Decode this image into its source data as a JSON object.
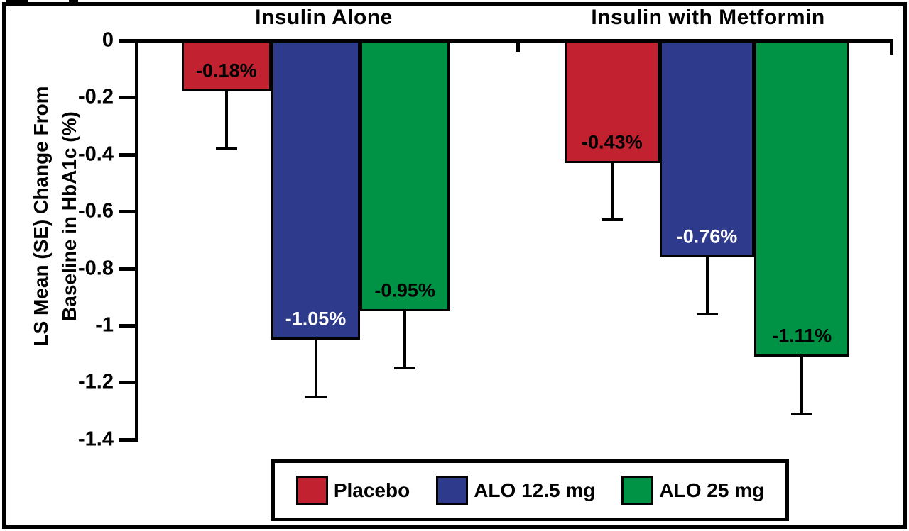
{
  "chart_data": {
    "type": "bar",
    "orientation": "vertical-negative",
    "groups": [
      "Insulin Alone",
      "Insulin with Metformin"
    ],
    "series": [
      {
        "name": "Placebo",
        "color": "#C2212F",
        "label_text_color": "#000000",
        "values": [
          -0.18,
          -0.43
        ],
        "value_labels": [
          "-0.18%",
          "-0.43%"
        ],
        "se_lower_whisker": [
          0.2,
          0.2
        ]
      },
      {
        "name": "ALO 12.5 mg",
        "color": "#2E3A8C",
        "label_text_color": "#FFFFFF",
        "values": [
          -1.05,
          -0.76
        ],
        "value_labels": [
          "-1.05%",
          "-0.76%"
        ],
        "se_lower_whisker": [
          0.2,
          0.2
        ]
      },
      {
        "name": "ALO 25 mg",
        "color": "#009245",
        "label_text_color": "#000000",
        "values": [
          -0.95,
          -1.11
        ],
        "value_labels": [
          "-0.95%",
          "-1.11%"
        ],
        "se_lower_whisker": [
          0.2,
          0.2
        ]
      }
    ],
    "ylabel_lines": [
      "LS Mean (SE) Change From",
      "Baseline in HbA1c (%)"
    ],
    "ylim": [
      0,
      -1.4
    ],
    "y_ticks": [
      0,
      -0.2,
      -0.4,
      -0.6,
      -0.8,
      -1,
      -1.2,
      -1.4
    ],
    "y_tick_labels": [
      "0",
      "-0.2",
      "-0.4",
      "-0.6",
      "-0.8",
      "-1",
      "-1.2",
      "-1.4"
    ],
    "error_bar_style": "lower whiskers with end caps (SE)",
    "grid": "off",
    "legend": {
      "position": "bottom",
      "boxed": true,
      "entries": [
        "Placebo",
        "ALO 12.5 mg",
        "ALO 25 mg"
      ]
    }
  }
}
